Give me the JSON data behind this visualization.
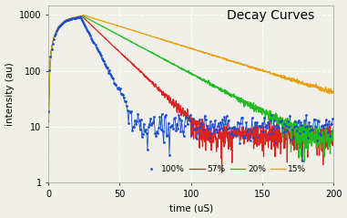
{
  "title": "Decay Curves",
  "xlabel": "time (uS)",
  "ylabel": "intensity (au)",
  "xlim": [
    0,
    200
  ],
  "ylim": [
    1,
    1500
  ],
  "yticks": [
    1,
    10,
    100,
    1000
  ],
  "xticks": [
    0,
    50,
    100,
    150,
    200
  ],
  "background_color": "#f0f0e8",
  "grid_color": "#ffffff",
  "series": [
    {
      "label": "100%",
      "color": "#1a4fcc",
      "marker": "o",
      "peak_time": 22,
      "peak_val": 950,
      "rise_tau": 7,
      "decay_tau": 9,
      "noise_floor": 10.5,
      "seed": 1
    },
    {
      "label": "57%",
      "color": "#dd2222",
      "marker": null,
      "peak_time": 23,
      "peak_val": 970,
      "rise_tau": 7.5,
      "decay_tau": 18,
      "noise_floor": 7.0,
      "seed": 2
    },
    {
      "label": "20%",
      "color": "#22bb22",
      "marker": null,
      "peak_time": 24,
      "peak_val": 960,
      "rise_tau": 7.5,
      "decay_tau": 32,
      "noise_floor": 6.0,
      "seed": 3
    },
    {
      "label": "15%",
      "color": "#e8a010",
      "marker": null,
      "peak_time": 24,
      "peak_val": 1000,
      "rise_tau": 7.5,
      "decay_tau": 55,
      "noise_floor": 8.0,
      "seed": 4
    }
  ]
}
